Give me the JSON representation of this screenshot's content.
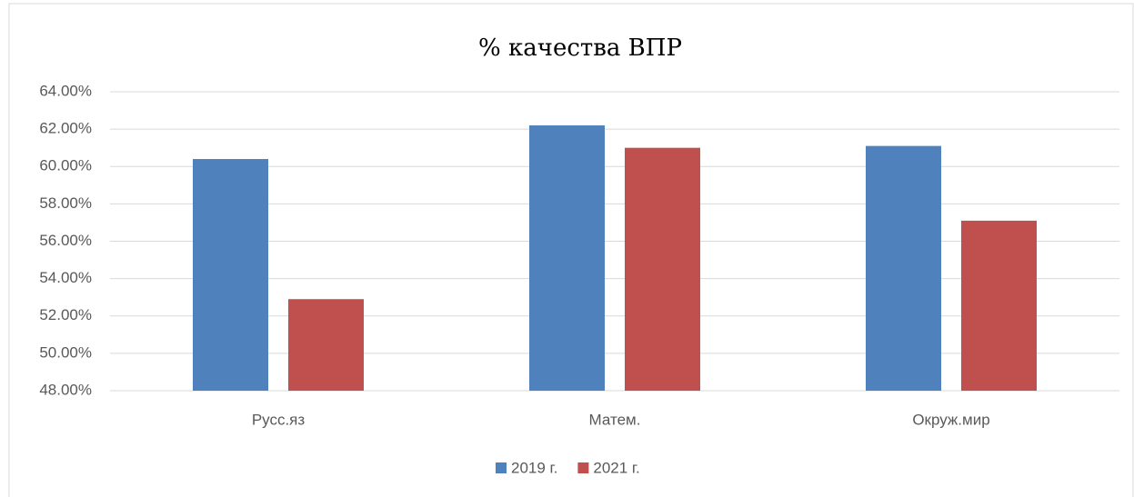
{
  "chart_data": {
    "type": "bar",
    "title": "% качества  ВПР",
    "categories": [
      "Русс.яз",
      "Матем.",
      "Окруж.мир"
    ],
    "series": [
      {
        "name": "2019 г.",
        "color": "#4f81bd",
        "values": [
          60.4,
          62.2,
          61.1
        ]
      },
      {
        "name": "2021 г.",
        "color": "#c0504d",
        "values": [
          52.9,
          61.0,
          57.1
        ]
      }
    ],
    "ylim": [
      48,
      64
    ],
    "yticks": [
      {
        "value": 48,
        "label": "48.00%"
      },
      {
        "value": 50,
        "label": "50.00%"
      },
      {
        "value": 52,
        "label": "52.00%"
      },
      {
        "value": 54,
        "label": "54.00%"
      },
      {
        "value": 56,
        "label": "56.00%"
      },
      {
        "value": 58,
        "label": "58.00%"
      },
      {
        "value": 60,
        "label": "60.00%"
      },
      {
        "value": 62,
        "label": "62.00%"
      },
      {
        "value": 64,
        "label": "64.00%"
      }
    ],
    "grid": true,
    "legend": "bottom"
  }
}
